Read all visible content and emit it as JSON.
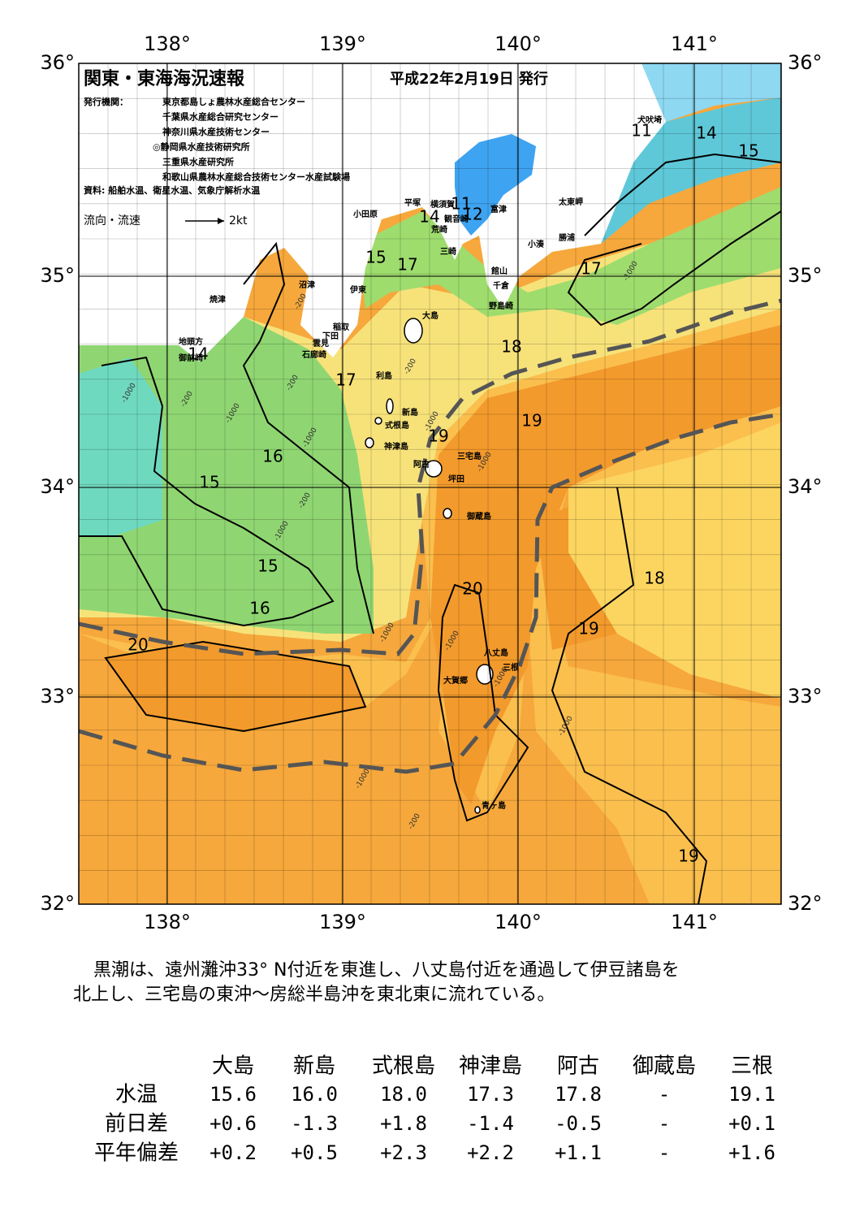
{
  "header": {
    "title": "関東・東海海況速報",
    "date": "平成22年2月19日 発行",
    "issuer_label": "発行機関：",
    "issuers": [
      "東京都島しょ農林水産総合センター",
      "千葉県水産総合研究センター",
      "神奈川県水産技術センター",
      "◎静岡県水産技術研究所",
      "三重県水産研究所",
      "和歌山県農林水産総合技術センター水産試験場"
    ],
    "source": "資料: 船舶水温、衛星水温、気象庁解析水温",
    "legend_label": "流向・流速",
    "legend_scale": "2kt"
  },
  "map": {
    "lon_labels": [
      "138°",
      "139°",
      "140°",
      "141°"
    ],
    "lat_labels": [
      "36°",
      "35°",
      "34°",
      "33°",
      "32°"
    ],
    "contour_labels": [
      "11",
      "14",
      "15",
      "17",
      "18",
      "19",
      "18",
      "19",
      "19",
      "20",
      "20",
      "16",
      "15",
      "15",
      "16",
      "17",
      "15",
      "17",
      "14",
      "14",
      "11",
      "12",
      "19"
    ],
    "depth_labels": [
      "-1000",
      "-200",
      "-1000",
      "-200",
      "-200",
      "-1000",
      "-200",
      "-1000",
      "-200",
      "-1000",
      "-1000",
      "-1000",
      "-1000",
      "-200",
      "-1000",
      "-1000",
      "-1000",
      "-1000"
    ],
    "places": [
      "犬吠埼",
      "太東岬",
      "勝浦",
      "小湊",
      "富津",
      "横須賀",
      "観音崎",
      "荒崎",
      "三崎",
      "館山",
      "千倉",
      "野島崎",
      "平塚",
      "小田原",
      "沼津",
      "伊東",
      "稲取",
      "下田",
      "雲見",
      "石廊崎",
      "焼津",
      "地頭方",
      "御前崎",
      "大島",
      "利島",
      "新島",
      "式根島",
      "神津島",
      "三宅島",
      "阿古",
      "坪田",
      "御蔵島",
      "八丈島",
      "三根",
      "大賀郷",
      "青ヶ島"
    ]
  },
  "summary": [
    "黒潮は、遠州灘沖33° N付近を東進し、八丈島付近を通過して伊豆諸島を",
    "北上し、三宅島の東沖〜房総半島沖を東北東に流れている。"
  ],
  "table": {
    "columns": [
      "大島",
      "新島",
      "式根島",
      "神津島",
      "阿古",
      "御蔵島",
      "三根"
    ],
    "rows": [
      {
        "label": "水温",
        "values": [
          "15.6",
          "16.0",
          "18.0",
          "17.3",
          "17.8",
          "-",
          "19.1"
        ]
      },
      {
        "label": "前日差",
        "values": [
          "+0.6",
          "-1.3",
          "+1.8",
          "-1.4",
          "-0.5",
          "-",
          "+0.1"
        ]
      },
      {
        "label": "平年偏差",
        "values": [
          "+0.2",
          "+0.5",
          "+2.3",
          "+2.2",
          "+1.1",
          "-",
          "+1.6"
        ]
      }
    ]
  }
}
